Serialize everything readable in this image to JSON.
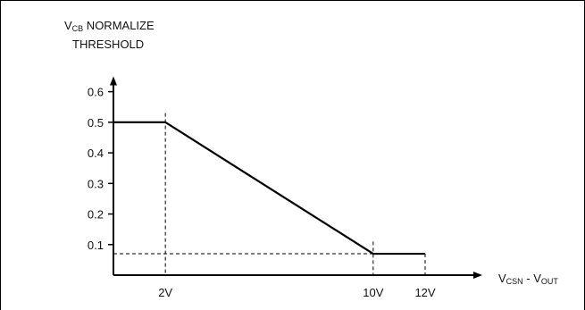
{
  "chart_data": {
    "type": "line",
    "ylabel_main": "V",
    "ylabel_sub": "CB",
    "ylabel_rest": " NORMALIZE",
    "ylabel_line2": "THRESHOLD",
    "xlabel_parts": [
      {
        "text": "V",
        "sub": false
      },
      {
        "text": "CSN",
        "sub": true
      },
      {
        "text": " - V",
        "sub": false
      },
      {
        "text": "OUT",
        "sub": true
      }
    ],
    "y_ticks": [
      {
        "value": 0.1,
        "label": "0.1"
      },
      {
        "value": 0.2,
        "label": "0.2"
      },
      {
        "value": 0.3,
        "label": "0.3"
      },
      {
        "value": 0.4,
        "label": "0.4"
      },
      {
        "value": 0.5,
        "label": "0.5"
      },
      {
        "value": 0.6,
        "label": "0.6"
      }
    ],
    "x_ticks": [
      {
        "value": 2,
        "label": "2V"
      },
      {
        "value": 10,
        "label": "10V"
      },
      {
        "value": 12,
        "label": "12V"
      }
    ],
    "series": [
      {
        "x": [
          0,
          2,
          10,
          12
        ],
        "y": [
          0.5,
          0.5,
          0.07,
          0.07
        ]
      }
    ],
    "guides": [
      {
        "type": "vertical",
        "x": 2,
        "y_top": 0.53
      },
      {
        "type": "vertical",
        "x": 10,
        "y_top": 0.11
      },
      {
        "type": "vertical",
        "x": 12,
        "y_top": 0.07
      },
      {
        "type": "horizontal",
        "y": 0.07,
        "x_to": 10
      }
    ],
    "xlim": [
      0,
      14.2
    ],
    "ylim": [
      0,
      0.65
    ]
  }
}
